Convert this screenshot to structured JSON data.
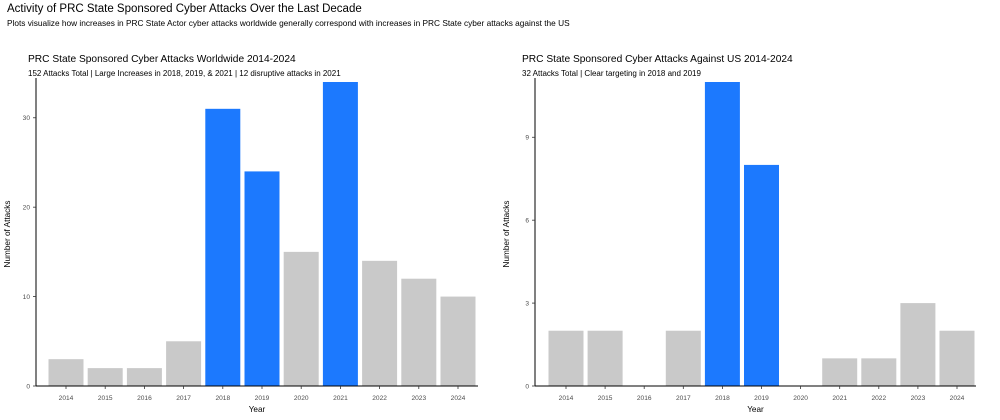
{
  "figure": {
    "title": "Activity of PRC State Sponsored Cyber Attacks Over the Last Decade",
    "subtitle": "Plots visualize how increases in PRC State Actor cyber attacks worldwide generally correspond with increases in PRC State cyber attacks against the US"
  },
  "colors": {
    "highlight": "#1c79fe",
    "default": "#c9c9c9",
    "axis": "#000000",
    "tick_text": "#4d4d4d",
    "background": "#ffffff"
  },
  "chart_data": [
    {
      "type": "bar",
      "title": "PRC State Sponsored Cyber Attacks Worldwide 2014-2024",
      "subtitle": "152 Attacks Total | Large Increases in 2018, 2019, & 2021 | 12 disruptive attacks in 2021",
      "xlabel": "Year",
      "ylabel": "Number of Attacks",
      "categories": [
        "2014",
        "2015",
        "2016",
        "2017",
        "2018",
        "2019",
        "2020",
        "2021",
        "2022",
        "2023",
        "2024"
      ],
      "values": [
        3,
        2,
        2,
        5,
        31,
        24,
        15,
        34,
        14,
        12,
        10
      ],
      "highlighted": [
        "2018",
        "2019",
        "2021"
      ],
      "ylim": [
        0,
        34
      ],
      "yticks": [
        0,
        10,
        20,
        30
      ],
      "grid": false
    },
    {
      "type": "bar",
      "title": "PRC State Sponsored Cyber Attacks Against US 2014-2024",
      "subtitle": "32 Attacks Total | Clear targeting in 2018 and 2019",
      "xlabel": "Year",
      "ylabel": "Number of Attacks",
      "categories": [
        "2014",
        "2015",
        "2016",
        "2017",
        "2018",
        "2019",
        "2020",
        "2021",
        "2022",
        "2023",
        "2024"
      ],
      "values": [
        2,
        2,
        0,
        2,
        11,
        8,
        0,
        1,
        1,
        3,
        2
      ],
      "highlighted": [
        "2018",
        "2019"
      ],
      "ylim": [
        0,
        11
      ],
      "yticks": [
        0,
        3,
        6,
        9
      ],
      "grid": false
    }
  ]
}
